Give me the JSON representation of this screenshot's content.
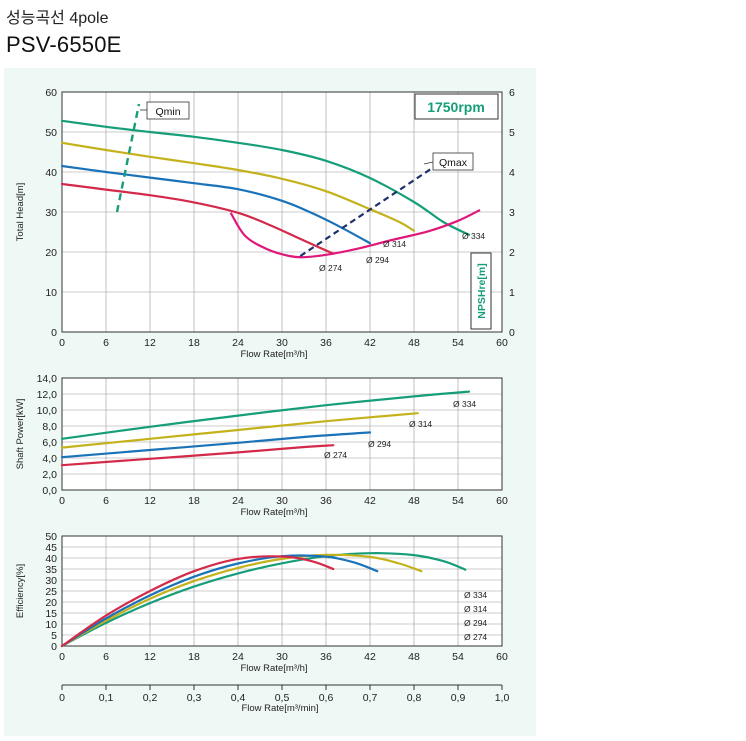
{
  "header": {
    "title": "성능곡선 4pole",
    "model": "PSV-6550E"
  },
  "chart_data": [
    {
      "type": "line",
      "name": "head",
      "ylabel": "Total Head[m]",
      "xlabel": "Flow Rate[m³/h]",
      "xlim": [
        0,
        60
      ],
      "ylim": [
        0,
        60
      ],
      "x_ticks": [
        "0",
        "6",
        "12",
        "18",
        "24",
        "30",
        "36",
        "42",
        "48",
        "54",
        "60"
      ],
      "y_ticks": [
        "0",
        "10",
        "20",
        "30",
        "40",
        "50",
        "60"
      ],
      "y2_label": "NPSHre[m]",
      "y2_lim": [
        0,
        6
      ],
      "y2_ticks": [
        "0",
        "1",
        "2",
        "3",
        "4",
        "5",
        "6"
      ],
      "speed_label": "1750rpm",
      "qmin_label": "Qmin",
      "qmax_label": "Qmax",
      "grid": true,
      "colors": {
        "d334": "#169e7a",
        "d314": "#c4b21c",
        "d294": "#1a72b8",
        "d274": "#d42a4a",
        "npsh": "#e0187a",
        "qmax": "#20306a"
      },
      "series": [
        {
          "name": "Ø 334",
          "color": "#169e7a",
          "x": [
            0,
            6,
            12,
            18,
            24,
            30,
            36,
            42,
            48,
            52,
            55.5
          ],
          "y": [
            52.8,
            51.3,
            50,
            48.8,
            47.3,
            45.5,
            42.8,
            38.5,
            32.5,
            27.5,
            24.3
          ]
        },
        {
          "name": "Ø 314",
          "color": "#c4b21c",
          "x": [
            0,
            6,
            12,
            18,
            24,
            30,
            36,
            42,
            46,
            48
          ],
          "y": [
            47.3,
            45.5,
            43.8,
            42.2,
            40.5,
            38.3,
            35.2,
            30.7,
            27.5,
            25.3
          ]
        },
        {
          "name": "Ø 294",
          "color": "#1a72b8",
          "x": [
            0,
            6,
            12,
            18,
            24,
            30,
            34,
            38,
            42
          ],
          "y": [
            41.5,
            40,
            38.6,
            37.2,
            35.7,
            32.8,
            29.8,
            26.2,
            22.2
          ]
        },
        {
          "name": "Ø 274",
          "color": "#d42a4a",
          "x": [
            0,
            6,
            12,
            18,
            24,
            28,
            32,
            35,
            37
          ],
          "y": [
            37,
            35.6,
            34.2,
            32.4,
            29.8,
            27,
            23.7,
            21.2,
            19.6
          ]
        }
      ],
      "npsh": {
        "name": "NPSHre",
        "color": "#e0187a",
        "x": [
          23,
          25,
          28,
          31,
          33,
          36,
          40,
          45,
          50,
          54,
          57
        ],
        "y": [
          2.98,
          2.4,
          2.07,
          1.9,
          1.87,
          1.93,
          2.07,
          2.3,
          2.52,
          2.78,
          3.05
        ]
      },
      "qmin": {
        "x": [
          7.5,
          10.5
        ],
        "y": [
          30,
          57
        ]
      },
      "qmax": {
        "x": [
          32.5,
          50.5
        ],
        "y": [
          19,
          41
        ]
      },
      "curve_labels": [
        "Ø 334",
        "Ø 314",
        "Ø 294",
        "Ø 274"
      ]
    },
    {
      "type": "line",
      "name": "power",
      "ylabel": "Shaft Power[kW]",
      "xlabel": "Flow Rate[m³/h]",
      "xlim": [
        0,
        60
      ],
      "ylim": [
        0,
        14
      ],
      "x_ticks": [
        "0",
        "6",
        "12",
        "18",
        "24",
        "30",
        "36",
        "42",
        "48",
        "54",
        "60"
      ],
      "y_ticks": [
        "0,0",
        "2,0",
        "4,0",
        "6,0",
        "8,0",
        "10,0",
        "12,0",
        "14,0"
      ],
      "grid": true,
      "series": [
        {
          "name": "Ø 334",
          "color": "#169e7a",
          "x": [
            0,
            12,
            24,
            36,
            48,
            55.5
          ],
          "y": [
            6.4,
            7.9,
            9.3,
            10.6,
            11.7,
            12.3
          ]
        },
        {
          "name": "Ø 314",
          "color": "#c4b21c",
          "x": [
            0,
            12,
            24,
            36,
            48.5
          ],
          "y": [
            5.3,
            6.4,
            7.5,
            8.6,
            9.6
          ]
        },
        {
          "name": "Ø 294",
          "color": "#1a72b8",
          "x": [
            0,
            12,
            24,
            34,
            42
          ],
          "y": [
            4.1,
            5.0,
            5.9,
            6.7,
            7.2
          ]
        },
        {
          "name": "Ø 274",
          "color": "#d42a4a",
          "x": [
            0,
            12,
            24,
            32,
            37
          ],
          "y": [
            3.1,
            3.9,
            4.7,
            5.3,
            5.6
          ]
        }
      ],
      "curve_labels": [
        "Ø 334",
        "Ø 314",
        "Ø 294",
        "Ø 274"
      ]
    },
    {
      "type": "line",
      "name": "efficiency",
      "ylabel": "Efficiency[%]",
      "xlabel": "Flow Rate[m³/h]",
      "xlim": [
        0,
        60
      ],
      "ylim": [
        0,
        50
      ],
      "x_ticks": [
        "0",
        "6",
        "12",
        "18",
        "24",
        "30",
        "36",
        "42",
        "48",
        "54",
        "60"
      ],
      "y_ticks": [
        "0",
        "5",
        "10",
        "15",
        "20",
        "25",
        "30",
        "35",
        "40",
        "45",
        "50"
      ],
      "x2_label": "Flow Rate[m³/min]",
      "x2_lim": [
        0,
        1.0
      ],
      "x2_ticks": [
        "0",
        "0,1",
        "0,2",
        "0,3",
        "0,4",
        "0,5",
        "0,6",
        "0,7",
        "0,8",
        "0,9",
        "1,0"
      ],
      "grid": true,
      "series": [
        {
          "name": "Ø 334",
          "color": "#169e7a",
          "x": [
            0,
            6,
            12,
            18,
            24,
            30,
            36,
            42,
            48,
            52,
            55
          ],
          "y": [
            0,
            10.5,
            19.5,
            27,
            33,
            37.6,
            40.8,
            42.2,
            41.3,
            38.6,
            34.7
          ]
        },
        {
          "name": "Ø 314",
          "color": "#c4b21c",
          "x": [
            0,
            6,
            12,
            18,
            24,
            30,
            36,
            42,
            46,
            49
          ],
          "y": [
            0,
            11.5,
            21.5,
            29.5,
            35.5,
            39.6,
            41.4,
            40.5,
            37.5,
            34
          ]
        },
        {
          "name": "Ø 294",
          "color": "#1a72b8",
          "x": [
            0,
            6,
            12,
            18,
            24,
            30,
            36,
            40,
            43
          ],
          "y": [
            0,
            12.5,
            23,
            31.5,
            37.5,
            40.8,
            40.6,
            37.8,
            34
          ]
        },
        {
          "name": "Ø 274",
          "color": "#d42a4a",
          "x": [
            0,
            6,
            12,
            18,
            24,
            30,
            34,
            37
          ],
          "y": [
            0,
            13.8,
            25,
            34,
            39.6,
            40.7,
            38.6,
            35
          ]
        }
      ],
      "curve_labels": [
        "Ø 334",
        "Ø 314",
        "Ø 294",
        "Ø 274"
      ]
    }
  ]
}
